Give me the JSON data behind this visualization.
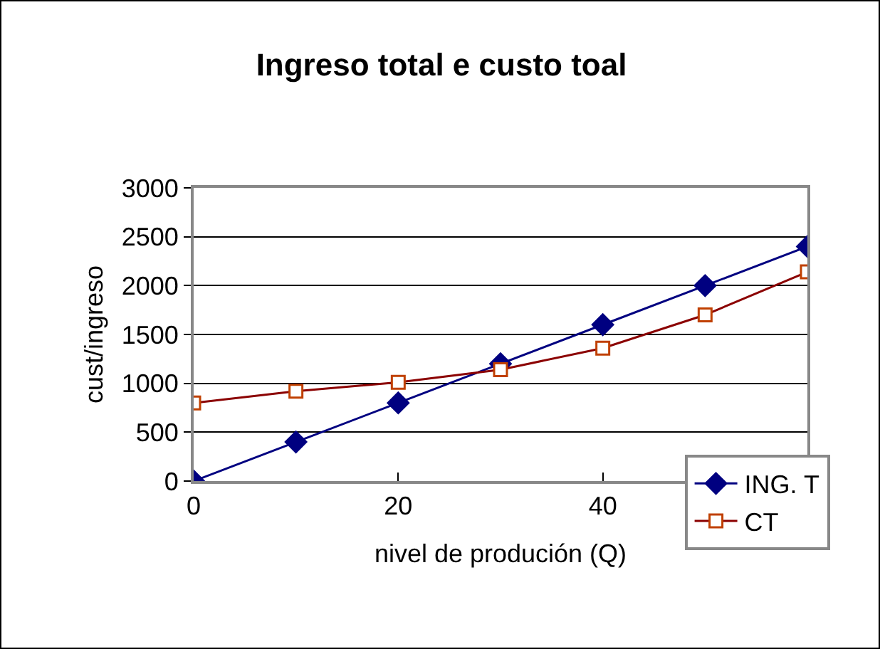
{
  "chart_data": {
    "type": "line",
    "title": "Ingreso total e custo toal",
    "xlabel": "nivel de produción (Q)",
    "ylabel": "cust/ingreso",
    "x": [
      0,
      10,
      20,
      30,
      40,
      50,
      60
    ],
    "series": [
      {
        "name": "ING. T",
        "color": "#000080",
        "marker": "diamond",
        "values": [
          0,
          400,
          800,
          1200,
          1600,
          2000,
          2400
        ]
      },
      {
        "name": "CT",
        "color": "#8b0000",
        "marker": "square",
        "values": [
          800,
          920,
          1010,
          1140,
          1360,
          1700,
          2140
        ]
      }
    ],
    "xlim": [
      0,
      60
    ],
    "xticks": [
      0,
      20,
      40
    ],
    "ylim": [
      0,
      3000
    ],
    "yticks": [
      0,
      500,
      1000,
      1500,
      2000,
      2500,
      3000
    ],
    "grid": "y",
    "legend": "bottom right",
    "line_style": "solid"
  }
}
